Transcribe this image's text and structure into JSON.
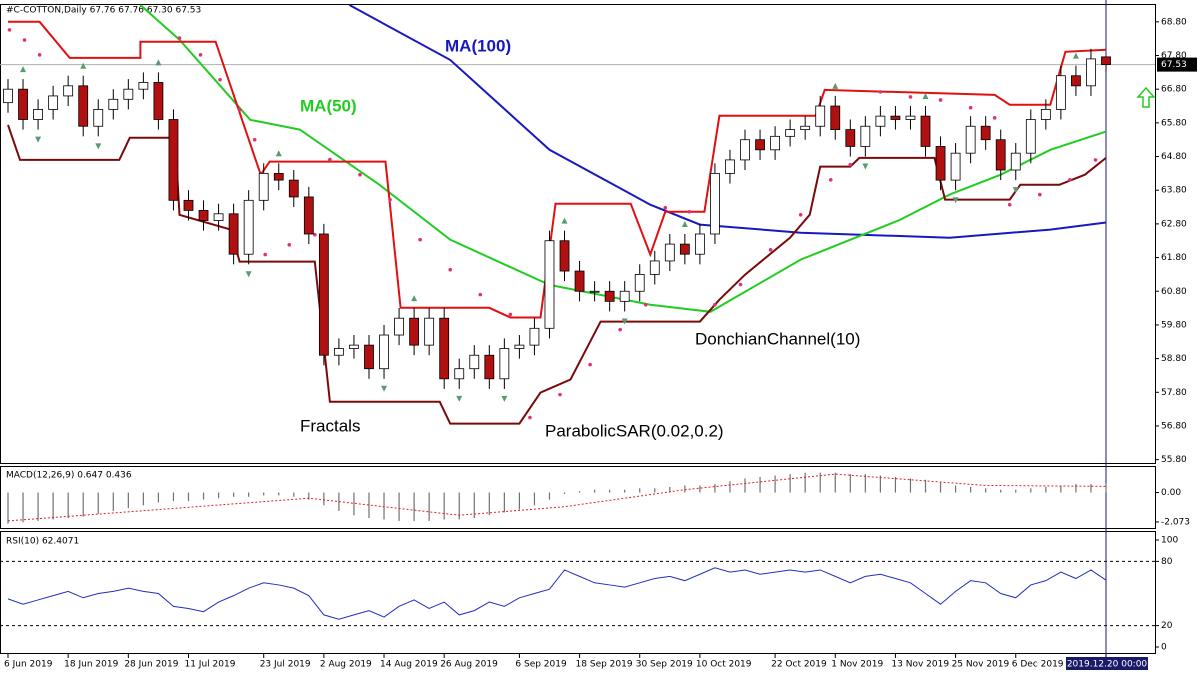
{
  "chart_data": [
    {
      "type": "candlestick",
      "title": "#C-COTTON,Daily 67.76 67.76 67.30 67.53",
      "categories": [
        "6 Jun 2019",
        null,
        null,
        null,
        "18 Jun 2019",
        null,
        null,
        null,
        "28 Jun 2019",
        null,
        null,
        null,
        "11 Jul 2019",
        null,
        null,
        null,
        null,
        "23 Jul 2019",
        null,
        null,
        null,
        "2 Aug 2019",
        null,
        null,
        null,
        "14 Aug 2019",
        null,
        null,
        null,
        "26 Aug 2019",
        null,
        null,
        null,
        null,
        "6 Sep 2019",
        null,
        null,
        null,
        "18 Sep 2019",
        null,
        null,
        null,
        "30 Sep 2019",
        null,
        null,
        null,
        "10 Oct 2019",
        null,
        null,
        null,
        null,
        "22 Oct 2019",
        null,
        null,
        null,
        "1 Nov 2019",
        null,
        null,
        null,
        "13 Nov 2019",
        null,
        null,
        null,
        "25 Nov 2019",
        null,
        null,
        null,
        "6 Dec 2019",
        null,
        null,
        null,
        null,
        null,
        "2019.12.20 00:00"
      ],
      "open": [
        66.4,
        66.8,
        65.9,
        66.2,
        66.6,
        66.9,
        65.7,
        66.2,
        66.5,
        66.8,
        67.0,
        65.9,
        63.5,
        63.2,
        62.9,
        63.1,
        61.9,
        63.5,
        64.3,
        64.1,
        63.6,
        62.5,
        58.9,
        59.1,
        59.2,
        58.5,
        59.5,
        60.0,
        59.2,
        60.0,
        58.2,
        58.5,
        58.9,
        58.2,
        59.1,
        59.2,
        59.7,
        62.3,
        61.4,
        60.8,
        60.8,
        60.5,
        60.8,
        61.3,
        61.7,
        62.2,
        61.9,
        62.5,
        64.3,
        64.7,
        65.3,
        65.0,
        65.4,
        65.6,
        65.7,
        66.3,
        65.6,
        65.1,
        65.7,
        66.0,
        65.9,
        66.0,
        65.1,
        64.1,
        64.9,
        65.7,
        65.3,
        64.4,
        64.9,
        65.9,
        66.2,
        67.2,
        66.9,
        67.76
      ],
      "high": [
        67.1,
        67.1,
        66.5,
        66.9,
        67.2,
        67.2,
        66.5,
        66.8,
        67.1,
        67.3,
        67.3,
        66.2,
        63.8,
        63.5,
        63.4,
        63.4,
        63.8,
        64.6,
        64.6,
        64.4,
        63.9,
        62.8,
        59.4,
        59.5,
        59.5,
        59.8,
        60.3,
        60.3,
        60.3,
        60.3,
        58.8,
        59.2,
        59.2,
        59.4,
        59.5,
        60.0,
        62.6,
        62.6,
        61.7,
        61.1,
        61.1,
        61.1,
        61.6,
        62.0,
        62.5,
        62.5,
        62.8,
        64.6,
        65.0,
        65.6,
        65.6,
        65.7,
        65.9,
        66.0,
        66.6,
        66.6,
        65.9,
        66.0,
        66.3,
        66.3,
        66.3,
        66.3,
        65.4,
        65.2,
        66.0,
        66.0,
        65.6,
        65.2,
        66.2,
        66.5,
        67.5,
        67.5,
        68.0,
        67.76
      ],
      "low": [
        66.1,
        65.6,
        65.6,
        65.9,
        66.3,
        65.4,
        65.4,
        65.9,
        66.2,
        66.5,
        65.6,
        63.2,
        62.9,
        62.6,
        62.6,
        61.6,
        61.6,
        63.2,
        63.8,
        63.3,
        62.2,
        58.6,
        58.6,
        58.8,
        58.2,
        58.2,
        59.2,
        58.9,
        58.9,
        57.9,
        57.9,
        58.2,
        57.9,
        57.9,
        58.8,
        58.9,
        59.4,
        61.1,
        60.5,
        60.5,
        60.2,
        60.2,
        60.5,
        61.0,
        61.4,
        61.6,
        61.6,
        62.2,
        64.0,
        64.4,
        64.7,
        64.7,
        65.1,
        65.3,
        65.4,
        65.3,
        64.8,
        64.8,
        65.4,
        65.6,
        65.6,
        64.8,
        63.8,
        63.8,
        64.6,
        65.0,
        64.1,
        64.1,
        64.6,
        65.6,
        65.9,
        66.6,
        66.6,
        67.3
      ],
      "close": [
        66.8,
        65.9,
        66.2,
        66.6,
        66.9,
        65.7,
        66.2,
        66.5,
        66.8,
        67.0,
        65.9,
        63.5,
        63.2,
        62.9,
        63.1,
        61.9,
        63.5,
        64.3,
        64.1,
        63.6,
        62.5,
        58.9,
        59.1,
        59.2,
        58.5,
        59.5,
        60.0,
        59.2,
        60.0,
        58.2,
        58.5,
        58.9,
        58.2,
        59.1,
        59.2,
        59.7,
        62.3,
        61.4,
        60.8,
        60.8,
        60.5,
        60.8,
        61.3,
        61.7,
        62.2,
        61.9,
        62.5,
        64.3,
        64.7,
        65.3,
        65.0,
        65.4,
        65.6,
        65.7,
        66.3,
        65.6,
        65.1,
        65.7,
        66.0,
        65.9,
        66.0,
        65.1,
        64.1,
        64.9,
        65.7,
        65.3,
        64.4,
        64.9,
        65.9,
        66.2,
        67.2,
        66.9,
        67.7,
        67.53
      ],
      "up_color": "#ffffff",
      "down_color": "#b01010",
      "ylim": [
        55.7,
        69.3
      ],
      "yticks": [
        {
          "value": 55.8,
          "label": "55.80"
        },
        {
          "value": 56.8,
          "label": "56.80"
        },
        {
          "value": 57.8,
          "label": "57.80"
        },
        {
          "value": 58.8,
          "label": "58.80"
        },
        {
          "value": 59.8,
          "label": "59.80"
        },
        {
          "value": 60.8,
          "label": "60.80"
        },
        {
          "value": 61.8,
          "label": "61.80"
        },
        {
          "value": 62.8,
          "label": "62.80"
        },
        {
          "value": 63.8,
          "label": "63.80"
        },
        {
          "value": 64.8,
          "label": "64.80"
        },
        {
          "value": 65.8,
          "label": "65.80"
        },
        {
          "value": 66.8,
          "label": "66.80"
        },
        {
          "value": 67.8,
          "label": "67.80"
        },
        {
          "value": 68.8,
          "label": "68.80"
        }
      ],
      "overlays": [
        {
          "name": "MA(100)",
          "color": "#1818c0",
          "x": [
            22.7,
            29.4,
            36.0,
            42.7,
            46.0,
            52.7,
            62.6,
            69.3,
            73.0
          ],
          "values": [
            69.3,
            67.67,
            65.0,
            63.37,
            62.78,
            62.54,
            62.39,
            62.63,
            62.84
          ]
        },
        {
          "name": "MA(50)",
          "color": "#22cc22",
          "x": [
            8.8,
            11.4,
            16.1,
            19.4,
            24.7,
            29.4,
            36.0,
            42.7,
            46.7,
            52.7,
            59.3,
            62.6,
            66.0,
            69.3,
            73.0
          ],
          "values": [
            69.3,
            68.27,
            65.89,
            65.6,
            63.96,
            62.33,
            60.99,
            60.4,
            60.19,
            61.74,
            62.92,
            63.67,
            64.26,
            65.0,
            65.54
          ]
        },
        {
          "name": "DonchianChannel(10)",
          "upper": {
            "color": "#e01010",
            "x": [
              0,
              2.1,
              4.1,
              8.8,
              8.8,
              13.8,
              16.8,
              17.4,
              25.1,
              26.1,
              32.0,
              33.4,
              35.4,
              36.4,
              41.4,
              42.7,
              43.7,
              46.3,
              47.3,
              53.7,
              54.3,
              65.6,
              66.6,
              69.3,
              70.3,
              73.0
            ],
            "values": [
              68.8,
              68.8,
              67.73,
              67.73,
              68.21,
              68.21,
              64.26,
              64.65,
              64.65,
              60.31,
              60.31,
              60.02,
              60.02,
              63.4,
              63.4,
              61.89,
              63.16,
              63.16,
              66.01,
              66.01,
              66.78,
              66.63,
              66.34,
              66.34,
              67.91,
              67.97
            ]
          },
          "lower": {
            "color": "#7a0a0a",
            "x": [
              0,
              0.8,
              7.4,
              8.1,
              11.1,
              11.4,
              14.8,
              15.4,
              20.4,
              21.4,
              28.7,
              29.4,
              34.0,
              35.4,
              37.4,
              39.4,
              41.4,
              46.0,
              47.3,
              49.0,
              52.0,
              53.3,
              54.0,
              56.0,
              56.6,
              61.6,
              62.3,
              66.6,
              67.3,
              69.9,
              71.6,
              73.0
            ],
            "values": [
              65.74,
              64.7,
              64.7,
              65.36,
              65.36,
              63.07,
              62.63,
              61.68,
              61.68,
              57.52,
              57.52,
              56.87,
              56.87,
              57.79,
              58.18,
              59.9,
              59.9,
              59.9,
              60.55,
              61.29,
              62.39,
              63.07,
              64.5,
              64.5,
              64.76,
              64.76,
              63.52,
              63.52,
              63.96,
              63.96,
              64.26,
              64.76
            ]
          }
        },
        {
          "name": "ParabolicSAR(0.02,0.2)",
          "color": "#e0307a",
          "x": [
            0.1,
            1.1,
            2.1,
            11.4,
            12.8,
            14.1,
            15.4,
            16.4,
            17.1,
            18.7,
            20.4,
            21.4,
            23.4,
            25.4,
            27.4,
            29.4,
            31.4,
            33.4,
            34.7,
            36.7,
            38.7,
            40.7,
            42.4,
            43.7,
            45.3,
            47.0,
            48.7,
            50.7,
            52.7,
            54.7,
            56.0,
            58.0,
            60.0,
            62.0,
            64.0,
            65.6,
            66.6,
            68.6,
            70.6,
            72.3
          ],
          "values": [
            68.56,
            68.26,
            67.82,
            68.32,
            67.82,
            67.08,
            66.19,
            65.3,
            61.89,
            62.18,
            62.48,
            64.71,
            64.26,
            63.52,
            62.33,
            61.44,
            60.7,
            60.11,
            57.05,
            57.73,
            58.62,
            59.66,
            60.4,
            63.28,
            63.16,
            60.4,
            61.0,
            62.03,
            63.07,
            64.11,
            64.56,
            66.72,
            66.57,
            66.48,
            66.25,
            65.95,
            63.37,
            63.67,
            64.11,
            64.7
          ]
        },
        {
          "name": "Fractals",
          "color": "#5a9a70",
          "up": {
            "x": [
              1,
              5,
              10,
              18,
              27,
              37,
              45,
              55,
              61,
              71
            ],
            "values": [
              67.1,
              67.2,
              67.3,
              64.6,
              60.3,
              62.6,
              62.5,
              66.6,
              66.3,
              67.5
            ]
          },
          "down": {
            "x": [
              2,
              6,
              16,
              25,
              30,
              33,
              41,
              57,
              63,
              67
            ],
            "values": [
              65.6,
              65.4,
              61.6,
              58.2,
              57.9,
              57.9,
              60.2,
              64.8,
              63.8,
              64.1
            ]
          }
        }
      ]
    },
    {
      "type": "bar",
      "title": "MACD(12,26,9) 0.647 0.436",
      "color": "#707070",
      "values": [
        -2.2,
        -2.1,
        -2.0,
        -1.9,
        -1.8,
        -1.7,
        -1.5,
        -1.3,
        -1.1,
        -0.9,
        -0.7,
        -0.6,
        -0.6,
        -0.5,
        -0.4,
        -0.3,
        -0.3,
        -0.2,
        -0.2,
        -0.3,
        -0.5,
        -0.9,
        -1.3,
        -1.6,
        -1.8,
        -1.9,
        -2.0,
        -2.0,
        -2.0,
        -1.9,
        -1.9,
        -1.8,
        -1.6,
        -1.4,
        -1.2,
        -0.9,
        -0.5,
        -0.1,
        0.1,
        0.2,
        0.2,
        0.2,
        0.3,
        0.3,
        0.4,
        0.5,
        0.5,
        0.6,
        0.8,
        1.0,
        1.1,
        1.2,
        1.3,
        1.4,
        1.4,
        1.4,
        1.3,
        1.3,
        1.2,
        1.1,
        1.0,
        0.9,
        0.7,
        0.5,
        0.4,
        0.3,
        0.2,
        0.2,
        0.3,
        0.4,
        0.5,
        0.6,
        0.6,
        0.647
      ],
      "signal": {
        "color": "#e02020",
        "x": [
          0,
          10,
          20,
          30,
          37,
          45,
          55,
          65,
          73
        ],
        "values": [
          -2.0,
          -1.2,
          -0.4,
          -1.6,
          -1.0,
          0.2,
          1.3,
          0.5,
          0.436
        ]
      },
      "ylim": [
        -2.5,
        1.8
      ],
      "yticks": [
        {
          "value": 0,
          "label": "0.00"
        },
        {
          "value": -2.073,
          "label": "-2.073"
        }
      ]
    },
    {
      "type": "line",
      "title": "RSI(10) 62.4071",
      "color": "#2030c0",
      "values": [
        45,
        40,
        44,
        48,
        52,
        46,
        50,
        52,
        55,
        52,
        50,
        38,
        36,
        33,
        42,
        48,
        55,
        60,
        58,
        55,
        48,
        30,
        26,
        30,
        34,
        28,
        38,
        44,
        36,
        42,
        30,
        34,
        42,
        38,
        46,
        50,
        54,
        72,
        66,
        60,
        58,
        56,
        60,
        64,
        66,
        62,
        68,
        74,
        70,
        72,
        68,
        70,
        72,
        70,
        72,
        66,
        60,
        66,
        68,
        64,
        60,
        50,
        40,
        52,
        62,
        60,
        50,
        46,
        58,
        62,
        70,
        64,
        72,
        62.4071
      ],
      "ylim": [
        0,
        100
      ],
      "yticks": [
        100,
        80,
        20,
        0
      ]
    }
  ]
}
